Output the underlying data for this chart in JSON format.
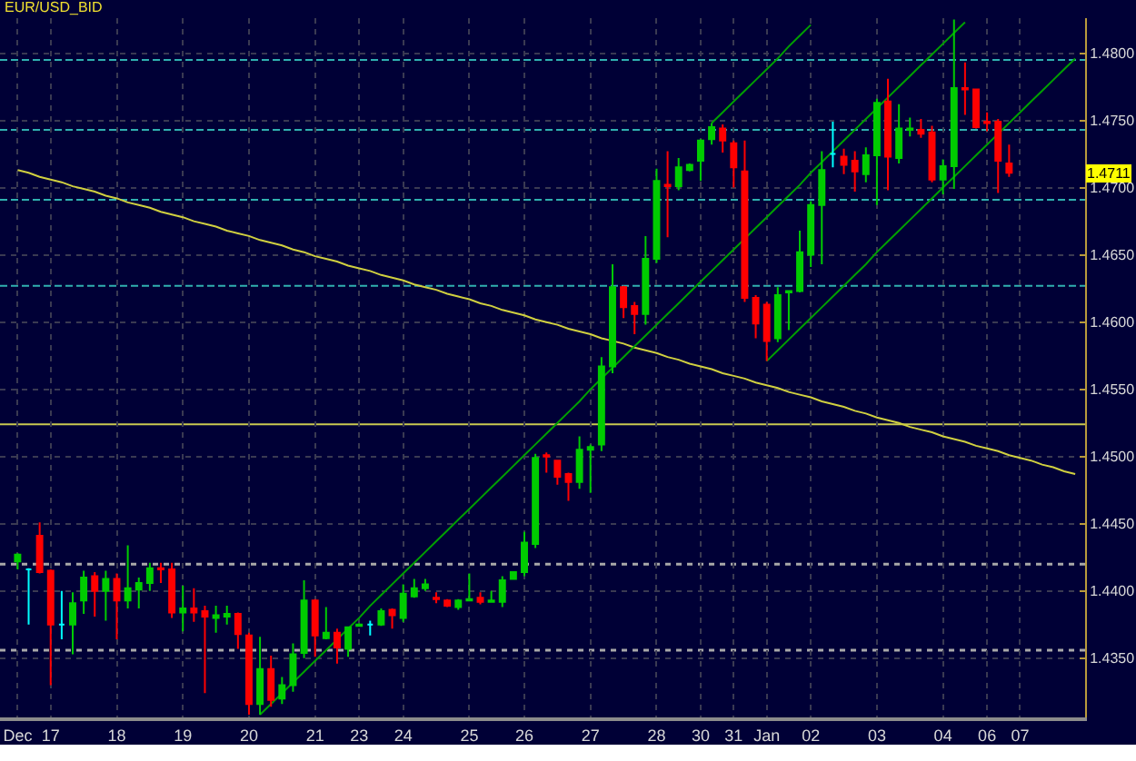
{
  "chart_data": {
    "type": "candlestick",
    "title": "EUR/USD_BID",
    "categories": [
      "Dec",
      null,
      null,
      "17",
      null,
      null,
      null,
      null,
      null,
      "18",
      null,
      null,
      null,
      null,
      null,
      "19",
      null,
      null,
      null,
      null,
      null,
      "20",
      null,
      null,
      null,
      null,
      null,
      "21",
      null,
      null,
      null,
      "23",
      null,
      null,
      null,
      "24",
      null,
      null,
      null,
      null,
      null,
      "25",
      null,
      null,
      null,
      null,
      "26",
      null,
      null,
      null,
      null,
      null,
      "27",
      null,
      null,
      null,
      null,
      null,
      "28",
      null,
      null,
      null,
      "30",
      null,
      null,
      "31",
      null,
      null,
      "Jan",
      null,
      null,
      null,
      "02",
      null,
      null,
      null,
      null,
      null,
      "03",
      null,
      null,
      null,
      null,
      null,
      "04",
      null,
      null,
      null,
      "06",
      null,
      null,
      "07",
      null,
      null,
      null,
      null,
      null
    ],
    "ohlc": [
      [
        1.4422,
        1.4428,
        1.4416,
        1.4427
      ],
      [
        1.4416,
        1.4417,
        1.4375,
        1.4416
      ],
      [
        1.4441,
        1.4451,
        1.4413,
        1.4414
      ],
      [
        1.4415,
        1.4416,
        1.433,
        1.4375
      ],
      [
        1.4375,
        1.44,
        1.4364,
        1.4375
      ],
      [
        1.4375,
        1.4399,
        1.4353,
        1.4391
      ],
      [
        1.4393,
        1.4415,
        1.4383,
        1.441
      ],
      [
        1.4411,
        1.4414,
        1.4381,
        1.44
      ],
      [
        1.44,
        1.4415,
        1.4378,
        1.4409
      ],
      [
        1.4409,
        1.4413,
        1.4364,
        1.4393
      ],
      [
        1.4393,
        1.4434,
        1.4387,
        1.4402
      ],
      [
        1.4401,
        1.441,
        1.4387,
        1.4406
      ],
      [
        1.4406,
        1.4421,
        1.44,
        1.4417
      ],
      [
        1.4417,
        1.4421,
        1.4406,
        1.4416
      ],
      [
        1.4416,
        1.4421,
        1.438,
        1.4384
      ],
      [
        1.4384,
        1.4404,
        1.437,
        1.4387
      ],
      [
        1.4387,
        1.4402,
        1.4377,
        1.4384
      ],
      [
        1.4385,
        1.4389,
        1.4324,
        1.4381
      ],
      [
        1.438,
        1.4389,
        1.4369,
        1.4382
      ],
      [
        1.4381,
        1.4389,
        1.4375,
        1.4383
      ],
      [
        1.4383,
        1.4384,
        1.4357,
        1.4368
      ],
      [
        1.4367,
        1.4369,
        1.4308,
        1.4316
      ],
      [
        1.4316,
        1.4366,
        1.4308,
        1.4342
      ],
      [
        1.4342,
        1.4352,
        1.4314,
        1.4319
      ],
      [
        1.432,
        1.4336,
        1.4316,
        1.433
      ],
      [
        1.433,
        1.4361,
        1.4325,
        1.4353
      ],
      [
        1.4354,
        1.4408,
        1.435,
        1.4393
      ],
      [
        1.4393,
        1.4394,
        1.4351,
        1.4367
      ],
      [
        1.4365,
        1.4388,
        1.4364,
        1.4369
      ],
      [
        1.4369,
        1.4372,
        1.4346,
        1.4358
      ],
      [
        1.4357,
        1.4373,
        1.4351,
        1.4373
      ],
      [
        1.4374,
        1.4376,
        1.4374,
        1.4375
      ],
      [
        1.4375,
        1.4378,
        1.4367,
        1.4375
      ],
      [
        1.4375,
        1.4387,
        1.4374,
        1.4385
      ],
      [
        1.4386,
        1.4387,
        1.4372,
        1.4382
      ],
      [
        1.438,
        1.4405,
        1.4377,
        1.4398
      ],
      [
        1.4396,
        1.4409,
        1.4395,
        1.4402
      ],
      [
        1.4402,
        1.4409,
        1.44,
        1.4405
      ],
      [
        1.4395,
        1.4399,
        1.4391,
        1.4394
      ],
      [
        1.4393,
        1.4394,
        1.4388,
        1.4389
      ],
      [
        1.4388,
        1.4394,
        1.4386,
        1.4393
      ],
      [
        1.4393,
        1.4413,
        1.4393,
        1.4394
      ],
      [
        1.4395,
        1.4399,
        1.439,
        1.4392
      ],
      [
        1.4392,
        1.44,
        1.4392,
        1.4393
      ],
      [
        1.4392,
        1.4411,
        1.4388,
        1.4408
      ],
      [
        1.4409,
        1.4414,
        1.4409,
        1.4414
      ],
      [
        1.4414,
        1.4444,
        1.4411,
        1.4436
      ],
      [
        1.4435,
        1.4502,
        1.4432,
        1.4499
      ],
      [
        1.4501,
        1.4503,
        1.4488,
        1.45
      ],
      [
        1.4497,
        1.4497,
        1.4479,
        1.4485
      ],
      [
        1.4487,
        1.4488,
        1.4467,
        1.4481
      ],
      [
        1.4481,
        1.4515,
        1.4476,
        1.4505
      ],
      [
        1.4505,
        1.4509,
        1.4473,
        1.4507
      ],
      [
        1.4509,
        1.4574,
        1.4504,
        1.4567
      ],
      [
        1.4567,
        1.4643,
        1.4562,
        1.4626
      ],
      [
        1.4626,
        1.4627,
        1.4603,
        1.4611
      ],
      [
        1.4612,
        1.4615,
        1.4591,
        1.4606
      ],
      [
        1.4606,
        1.4664,
        1.4598,
        1.4647
      ],
      [
        1.4647,
        1.4714,
        1.4644,
        1.4705
      ],
      [
        1.4702,
        1.4727,
        1.4663,
        1.4701
      ],
      [
        1.4701,
        1.4722,
        1.4698,
        1.4715
      ],
      [
        1.4713,
        1.4718,
        1.4712,
        1.4717
      ],
      [
        1.472,
        1.4736,
        1.4705,
        1.4735
      ],
      [
        1.4736,
        1.4748,
        1.4732,
        1.4745
      ],
      [
        1.4744,
        1.4747,
        1.4726,
        1.4735
      ],
      [
        1.4733,
        1.4735,
        1.47,
        1.4715
      ],
      [
        1.4712,
        1.4735,
        1.4615,
        1.4618
      ],
      [
        1.4618,
        1.462,
        1.4588,
        1.4599
      ],
      [
        1.4613,
        1.4615,
        1.4571,
        1.4586
      ],
      [
        1.4588,
        1.4626,
        1.4585,
        1.462
      ],
      [
        1.4622,
        1.4623,
        1.4594,
        1.4623
      ],
      [
        1.4623,
        1.4668,
        1.4622,
        1.4652
      ],
      [
        1.465,
        1.469,
        1.4641,
        1.4687
      ],
      [
        1.4687,
        1.4727,
        1.4643,
        1.4713
      ],
      [
        1.4725,
        1.4749,
        1.4715,
        1.4725
      ],
      [
        1.4723,
        1.4729,
        1.471,
        1.4717
      ],
      [
        1.472,
        1.4727,
        1.4697,
        1.4712
      ],
      [
        1.471,
        1.473,
        1.4704,
        1.4724
      ],
      [
        1.4724,
        1.4766,
        1.4687,
        1.4763
      ],
      [
        1.4764,
        1.4781,
        1.4698,
        1.4723
      ],
      [
        1.4722,
        1.4762,
        1.4718,
        1.4744
      ],
      [
        1.4743,
        1.4752,
        1.4738,
        1.4744
      ],
      [
        1.4743,
        1.4751,
        1.4737,
        1.474
      ],
      [
        1.4741,
        1.4746,
        1.4704,
        1.4706
      ],
      [
        1.4706,
        1.4721,
        1.4695,
        1.4716
      ],
      [
        1.4716,
        1.4825,
        1.4699,
        1.4774
      ],
      [
        1.4774,
        1.4793,
        1.4754,
        1.4773
      ],
      [
        1.4773,
        1.4773,
        1.4744,
        1.4745
      ],
      [
        1.4749,
        1.4756,
        1.4742,
        1.4748
      ],
      [
        1.4749,
        1.4751,
        1.4696,
        1.472
      ],
      [
        1.4718,
        1.4732,
        1.4708,
        1.4711
      ],
      null,
      null,
      null,
      null,
      null,
      null
    ],
    "colors": [
      "#00cc00",
      "#00ffff",
      "#ff0000",
      "#ff0000",
      "#00ffff",
      "#00cc00",
      "#00cc00",
      "#ff0000",
      "#00cc00",
      "#ff0000",
      "#00cc00",
      "#00cc00",
      "#00cc00",
      "#ff0000",
      "#ff0000",
      "#00cc00",
      "#ff0000",
      "#ff0000",
      "#00cc00",
      "#00cc00",
      "#ff0000",
      "#ff0000",
      "#00cc00",
      "#ff0000",
      "#00cc00",
      "#00cc00",
      "#00cc00",
      "#ff0000",
      "#00cc00",
      "#ff0000",
      "#00cc00",
      "#00cc00",
      "#00ffff",
      "#00cc00",
      "#ff0000",
      "#00cc00",
      "#00cc00",
      "#00cc00",
      "#ff0000",
      "#ff0000",
      "#00cc00",
      "#00cc00",
      "#ff0000",
      "#00cc00",
      "#00cc00",
      "#00cc00",
      "#00cc00",
      "#00cc00",
      "#ff0000",
      "#ff0000",
      "#ff0000",
      "#00cc00",
      "#00cc00",
      "#00cc00",
      "#00cc00",
      "#ff0000",
      "#ff0000",
      "#00cc00",
      "#00cc00",
      "#ff0000",
      "#00cc00",
      "#00cc00",
      "#00cc00",
      "#00cc00",
      "#ff0000",
      "#ff0000",
      "#ff0000",
      "#ff0000",
      "#ff0000",
      "#00cc00",
      "#00cc00",
      "#00cc00",
      "#00cc00",
      "#00cc00",
      "#00ffff",
      "#ff0000",
      "#ff0000",
      "#00cc00",
      "#00cc00",
      "#ff0000",
      "#00cc00",
      "#00cc00",
      "#ff0000",
      "#ff0000",
      "#00cc00",
      "#00cc00",
      "#ff0000",
      "#ff0000",
      "#ff0000",
      "#ff0000",
      "#ff0000",
      null,
      null,
      null,
      null,
      null,
      null
    ],
    "series": [
      {
        "type": "line",
        "color": "#d0d040",
        "values": [
          1.4713,
          1.4711,
          1.4708,
          1.4706,
          1.4704,
          1.4701,
          1.4699,
          1.4697,
          1.4694,
          1.4692,
          1.4689,
          1.4687,
          1.4685,
          1.4682,
          1.468,
          1.4678,
          1.4675,
          1.4673,
          1.4671,
          1.4668,
          1.4666,
          1.4664,
          1.4661,
          1.4659,
          1.4657,
          1.4654,
          1.4652,
          1.4649,
          1.4647,
          1.4645,
          1.4642,
          1.464,
          1.4638,
          1.4635,
          1.4633,
          1.4631,
          1.4628,
          1.4626,
          1.4624,
          1.4621,
          1.4619,
          1.4617,
          1.4614,
          1.4612,
          1.4609,
          1.4607,
          1.4605,
          1.4602,
          1.46,
          1.4598,
          1.4595,
          1.4593,
          1.4591,
          1.4588,
          1.4586,
          1.4584,
          1.4581,
          1.4579,
          1.4577,
          1.4574,
          1.4572,
          1.4569,
          1.4567,
          1.4565,
          1.4562,
          1.456,
          1.4558,
          1.4555,
          1.4553,
          1.4551,
          1.4548,
          1.4546,
          1.4544,
          1.4541,
          1.4539,
          1.4537,
          1.4534,
          1.4532,
          1.4529,
          1.4527,
          1.4525,
          1.4522,
          1.452,
          1.4518,
          1.4515,
          1.4513,
          1.4511,
          1.4508,
          1.4506,
          1.4504,
          1.4501,
          1.4499,
          1.4497,
          1.4494,
          1.4492,
          1.4489,
          1.4487
        ]
      },
      {
        "type": "line",
        "color": "#00a000",
        "values": [
          null,
          null,
          null,
          null,
          null,
          null,
          null,
          null,
          null,
          null,
          null,
          null,
          null,
          null,
          null,
          null,
          null,
          null,
          null,
          null,
          null,
          null,
          1.4308,
          1.4316,
          1.4324,
          1.4332,
          1.434,
          1.4348,
          1.4356,
          1.4364,
          1.4372,
          1.438,
          1.4389,
          1.4397,
          1.4405,
          1.4413,
          1.4421,
          1.4429,
          1.4437,
          1.4445,
          1.4453,
          1.4461,
          1.4469,
          1.4477,
          1.4485,
          1.4493,
          1.4501,
          1.4509,
          1.4517,
          1.4525,
          1.4533,
          1.4541,
          1.455,
          1.4558,
          1.4566,
          1.4574,
          1.4582,
          1.459,
          1.4598,
          1.4606,
          1.4614,
          1.4622,
          1.463,
          1.4638,
          1.4646,
          1.4654,
          1.4662,
          1.467,
          1.4678,
          1.4686,
          1.4694,
          1.4702,
          1.4711,
          1.4719,
          1.4727,
          1.4735,
          1.4743,
          1.4751,
          1.4759,
          1.4767,
          1.4775,
          1.4783,
          1.4791,
          1.4799,
          1.4807,
          1.4815,
          1.4823,
          null,
          null,
          null,
          null,
          null,
          null,
          null,
          null,
          null,
          null
        ]
      },
      {
        "type": "line",
        "color": "#00a000",
        "values": [
          null,
          null,
          null,
          null,
          null,
          null,
          null,
          null,
          null,
          null,
          null,
          null,
          null,
          null,
          null,
          null,
          null,
          null,
          null,
          null,
          null,
          null,
          null,
          null,
          null,
          null,
          null,
          null,
          null,
          null,
          null,
          null,
          null,
          null,
          null,
          null,
          null,
          null,
          null,
          null,
          null,
          null,
          null,
          null,
          null,
          null,
          null,
          null,
          null,
          null,
          null,
          null,
          null,
          null,
          null,
          null,
          null,
          null,
          null,
          null,
          null,
          null,
          null,
          null,
          null,
          null,
          null,
          null,
          1.4571,
          1.4579,
          1.4587,
          1.4595,
          1.4603,
          1.4611,
          1.4619,
          1.4627,
          1.4635,
          1.4643,
          1.4652,
          1.466,
          1.4668,
          1.4676,
          1.4684,
          1.4692,
          1.47,
          1.4708,
          1.4716,
          1.4724,
          1.4732,
          1.474,
          1.4748,
          1.4756,
          1.4764,
          1.4772,
          1.478,
          1.4788,
          1.4796
        ]
      },
      {
        "type": "line",
        "color": "#00a000",
        "values": [
          null,
          null,
          null,
          null,
          null,
          null,
          null,
          null,
          null,
          null,
          null,
          null,
          null,
          null,
          null,
          null,
          null,
          null,
          null,
          null,
          null,
          null,
          null,
          null,
          null,
          null,
          null,
          null,
          null,
          null,
          null,
          null,
          null,
          null,
          null,
          null,
          null,
          null,
          null,
          null,
          null,
          null,
          null,
          null,
          null,
          null,
          null,
          null,
          null,
          null,
          null,
          null,
          null,
          null,
          null,
          null,
          null,
          null,
          null,
          null,
          null,
          null,
          null,
          1.4748,
          1.4756,
          1.4764,
          1.4772,
          1.478,
          1.4788,
          1.4796,
          1.4805,
          1.4813,
          1.4821,
          null,
          null,
          null,
          null,
          null,
          null,
          null,
          null,
          null,
          null,
          null,
          null,
          null,
          null,
          null,
          null,
          null,
          null,
          null,
          null,
          null,
          null,
          null,
          null
        ]
      }
    ],
    "ref_lines": [
      {
        "axis": "y",
        "value": 1.4795,
        "color": "#30b0b0",
        "line_style": "dashed"
      },
      {
        "axis": "y",
        "value": 1.4743,
        "color": "#30b0b0",
        "line_style": "dashed"
      },
      {
        "axis": "y",
        "value": 1.4691,
        "color": "#30b0b0",
        "line_style": "dashed"
      },
      {
        "axis": "y",
        "value": 1.4627,
        "color": "#30b0b0",
        "line_style": "dashed"
      },
      {
        "axis": "y",
        "value": 1.4524,
        "color": "#c8c850",
        "line_style": "solid"
      },
      {
        "axis": "y",
        "value": 1.442,
        "color": "#a8a8a8",
        "line_style": "dotted"
      },
      {
        "axis": "y",
        "value": 1.4356,
        "color": "#a8a8a8",
        "line_style": "dotted"
      }
    ],
    "annotations": [
      {
        "text": "1.4711",
        "y": 1.4711
      }
    ],
    "ylim": [
      1.4306,
      1.4826
    ],
    "yticks": [
      {
        "value": 1.435,
        "label": "1.4350"
      },
      {
        "value": 1.44,
        "label": "1.4400"
      },
      {
        "value": 1.445,
        "label": "1.4450"
      },
      {
        "value": 1.45,
        "label": "1.4500"
      },
      {
        "value": 1.455,
        "label": "1.4550"
      },
      {
        "value": 1.46,
        "label": "1.4600"
      },
      {
        "value": 1.465,
        "label": "1.4650"
      },
      {
        "value": 1.47,
        "label": "1.4700"
      },
      {
        "value": 1.475,
        "label": "1.4750"
      },
      {
        "value": 1.48,
        "label": "1.4800"
      }
    ],
    "grid": true
  }
}
